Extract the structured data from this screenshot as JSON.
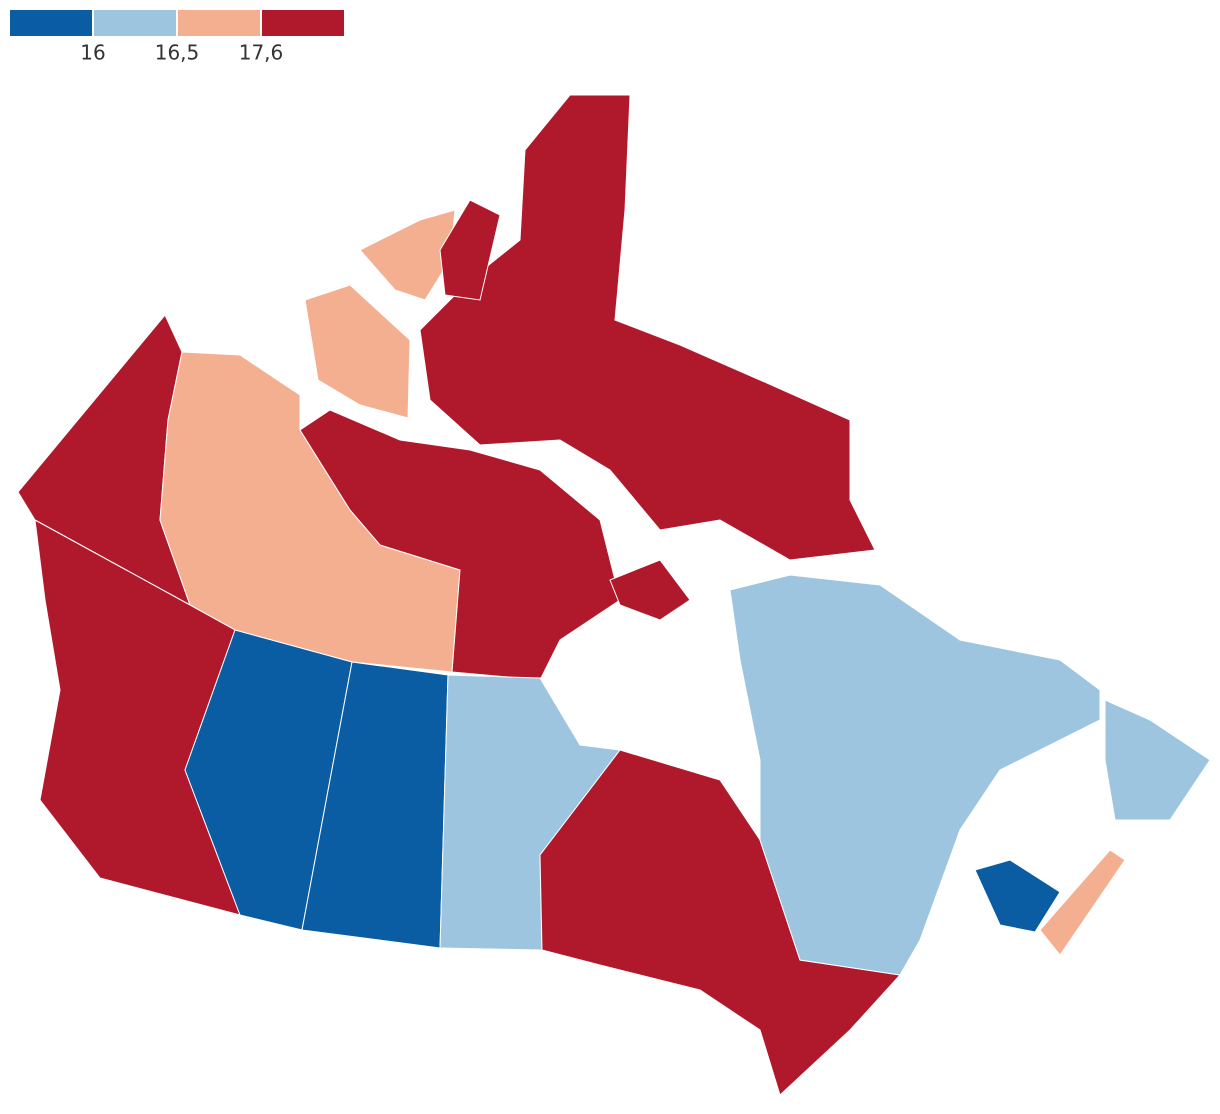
{
  "legend": {
    "colors": [
      "#0a5ca3",
      "#9dc5df",
      "#f4ae90",
      "#b0182c"
    ],
    "ticks": [
      16,
      {
        "value": 16.5,
        "label": "16,5"
      },
      {
        "value": 17.6,
        "label": "17,6"
      }
    ]
  }
}
